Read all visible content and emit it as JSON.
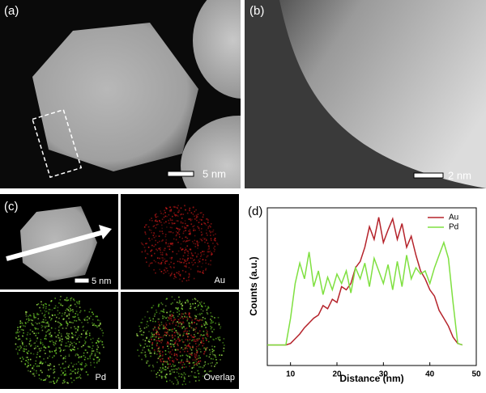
{
  "panels": {
    "a": {
      "label": "(a)",
      "scale_bar": "5 nm"
    },
    "b": {
      "label": "(b)",
      "scale_bar": "2 nm"
    },
    "c": {
      "label": "(c)",
      "scale_bar": "5 nm",
      "tiles": [
        "Au",
        "Pd",
        "Overlap"
      ]
    }
  },
  "chart_data": {
    "type": "line",
    "panel_label": "(d)",
    "xlabel": "Distance (nm)",
    "ylabel": "Counts (a.u.)",
    "x": [
      5,
      6,
      7,
      8,
      9,
      10,
      11,
      12,
      13,
      14,
      15,
      16,
      17,
      18,
      19,
      20,
      21,
      22,
      23,
      24,
      25,
      26,
      27,
      28,
      29,
      30,
      31,
      32,
      33,
      34,
      35,
      36,
      37,
      38,
      39,
      40,
      41,
      42,
      43,
      44,
      45,
      46,
      47
    ],
    "xlim": [
      5,
      50
    ],
    "xticks": [
      10,
      20,
      30,
      40,
      50
    ],
    "ylim": [
      0,
      100
    ],
    "legend": "upper right",
    "series": [
      {
        "name": "Au",
        "color": "#b5232b",
        "values": [
          13,
          13,
          13,
          13,
          13,
          14,
          17,
          20,
          24,
          27,
          30,
          32,
          38,
          36,
          42,
          40,
          50,
          48,
          52,
          62,
          66,
          75,
          88,
          80,
          94,
          78,
          86,
          93,
          80,
          90,
          75,
          82,
          70,
          60,
          55,
          48,
          44,
          35,
          30,
          25,
          18,
          14,
          13
        ]
      },
      {
        "name": "Pd",
        "color": "#7fe040",
        "values": [
          13,
          13,
          13,
          13,
          13,
          30,
          52,
          65,
          55,
          72,
          50,
          60,
          45,
          56,
          48,
          58,
          52,
          60,
          46,
          62,
          55,
          65,
          50,
          68,
          60,
          52,
          64,
          48,
          66,
          50,
          70,
          55,
          62,
          58,
          60,
          52,
          62,
          70,
          78,
          68,
          40,
          14,
          13
        ]
      }
    ]
  }
}
